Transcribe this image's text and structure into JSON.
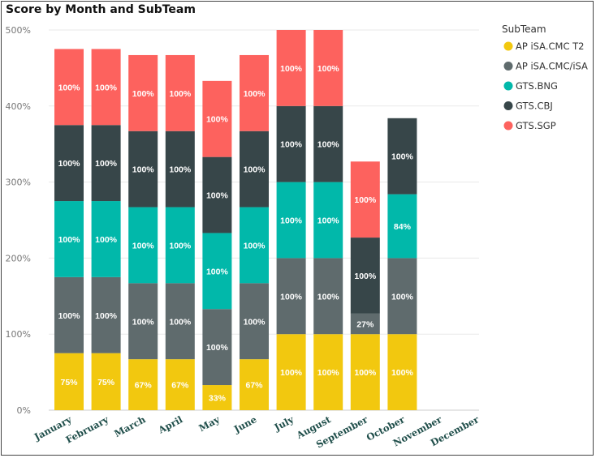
{
  "chart_data": {
    "type": "bar",
    "stacked": true,
    "title": "Score by Month and SubTeam",
    "xlabel": "",
    "ylabel": "",
    "ylim": [
      0,
      500
    ],
    "yticks": [
      "0%",
      "100%",
      "200%",
      "300%",
      "400%",
      "500%"
    ],
    "categories": [
      "January",
      "February",
      "March",
      "April",
      "May",
      "June",
      "July",
      "August",
      "September",
      "October",
      "November",
      "December"
    ],
    "legend_title": "SubTeam",
    "legend_position": "right",
    "series": [
      {
        "name": "AP iSA.CMC T2",
        "color": "#f2c80f",
        "values": [
          75,
          75,
          67,
          67,
          33,
          67,
          100,
          100,
          100,
          100,
          null,
          null
        ],
        "labels": [
          "75%",
          "75%",
          "67%",
          "67%",
          "33%",
          "67%",
          "100%",
          "100%",
          "100%",
          "100%",
          "",
          ""
        ]
      },
      {
        "name": "AP iSA.CMC/iSA",
        "color": "#5f6b6d",
        "values": [
          100,
          100,
          100,
          100,
          100,
          100,
          100,
          100,
          27,
          100,
          null,
          null
        ],
        "labels": [
          "100%",
          "100%",
          "100%",
          "100%",
          "100%",
          "100%",
          "100%",
          "100%",
          "27%",
          "100%",
          "",
          ""
        ]
      },
      {
        "name": "GTS.BNG",
        "color": "#01b8aa",
        "values": [
          100,
          100,
          100,
          100,
          100,
          100,
          100,
          100,
          null,
          84,
          null,
          null
        ],
        "labels": [
          "100%",
          "100%",
          "100%",
          "100%",
          "100%",
          "100%",
          "100%",
          "100%",
          "",
          "84%",
          "",
          ""
        ]
      },
      {
        "name": "GTS.CBJ",
        "color": "#374649",
        "values": [
          100,
          100,
          100,
          100,
          100,
          100,
          100,
          100,
          100,
          100,
          null,
          null
        ],
        "labels": [
          "100%",
          "100%",
          "100%",
          "100%",
          "100%",
          "100%",
          "100%",
          "100%",
          "100%",
          "100%",
          "",
          ""
        ]
      },
      {
        "name": "GTS.SGP",
        "color": "#fd625e",
        "values": [
          100,
          100,
          100,
          100,
          100,
          100,
          100,
          100,
          100,
          null,
          null,
          null
        ],
        "labels": [
          "100%",
          "100%",
          "100%",
          "100%",
          "100%",
          "100%",
          "100%",
          "100%",
          "100%",
          "",
          "",
          ""
        ]
      }
    ]
  }
}
